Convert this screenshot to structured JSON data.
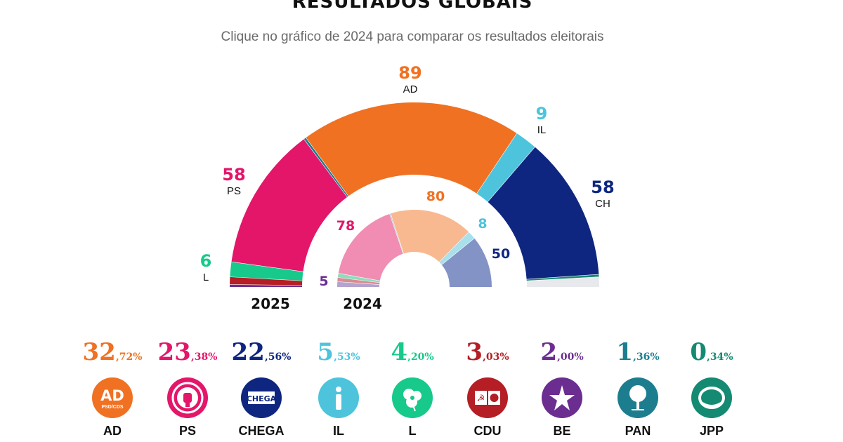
{
  "header": {
    "title": "RESULTADOS GLOBAIS",
    "subtitle": "Clique no gráfico de 2024 para comparar os resultados eleitorais"
  },
  "chart_data": {
    "type": "parliament-donut",
    "total_seats": 230,
    "charts": [
      {
        "year": "2025",
        "segments": [
          {
            "party": "BE",
            "seats": 1,
            "color": "#6b2d90",
            "label": ""
          },
          {
            "party": "CDU",
            "seats": 3,
            "color": "#b41e24",
            "label": ""
          },
          {
            "party": "L",
            "seats": 6,
            "color": "#17c98a",
            "label": "L",
            "value_label": "6"
          },
          {
            "party": "PS",
            "seats": 58,
            "color": "#e3166a",
            "label": "PS",
            "value_label": "58"
          },
          {
            "party": "PAN",
            "seats": 1,
            "color": "#1c7d8f",
            "label": ""
          },
          {
            "party": "AD",
            "seats": 89,
            "color": "#f07122",
            "label": "AD",
            "value_label": "89"
          },
          {
            "party": "IL",
            "seats": 9,
            "color": "#4dc4dc",
            "label": "IL",
            "value_label": "9"
          },
          {
            "party": "CH",
            "seats": 58,
            "color": "#0e2680",
            "label": "CH",
            "value_label": "58"
          },
          {
            "party": "JPP",
            "seats": 1,
            "color": "#148a72",
            "label": ""
          },
          {
            "party": "unassigned",
            "seats": 4,
            "color": "#e8e9ed",
            "label": ""
          }
        ]
      },
      {
        "year": "2024",
        "segments": [
          {
            "party": "BE",
            "seats": 5,
            "color": "#b5a3cf",
            "label": "",
            "value_label": "5"
          },
          {
            "party": "CDU",
            "seats": 4,
            "color": "#d98c8f",
            "label": ""
          },
          {
            "party": "L",
            "seats": 4,
            "color": "#8fdcbf",
            "label": ""
          },
          {
            "party": "PS",
            "seats": 78,
            "color": "#f18db2",
            "label": "",
            "value_label": "78"
          },
          {
            "party": "PAN",
            "seats": 1,
            "color": "#9fc2ca",
            "label": ""
          },
          {
            "party": "AD",
            "seats": 80,
            "color": "#f8b890",
            "label": "",
            "value_label": "80"
          },
          {
            "party": "IL",
            "seats": 8,
            "color": "#a8e0ec",
            "label": "",
            "value_label": "8"
          },
          {
            "party": "CH",
            "seats": 50,
            "color": "#8393c6",
            "label": "",
            "value_label": "50"
          }
        ]
      }
    ]
  },
  "results": [
    {
      "name": "AD",
      "int": "32",
      "dec": ",72%",
      "color": "#f07122",
      "logo": "ad-logo",
      "logo_text": "AD",
      "logo_sub": "PSD/CDS"
    },
    {
      "name": "PS",
      "int": "23",
      "dec": ",38%",
      "color": "#e3166a",
      "logo": "ps-fist-logo"
    },
    {
      "name": "CHEGA",
      "int": "22",
      "dec": ",56%",
      "color": "#0e2680",
      "logo": "chega-logo",
      "logo_text": "CHEGA"
    },
    {
      "name": "IL",
      "int": "5",
      "dec": ",53%",
      "color": "#4dc4dc",
      "logo": "il-logo"
    },
    {
      "name": "L",
      "int": "4",
      "dec": ",20%",
      "color": "#17c98a",
      "logo": "livre-poppy-logo"
    },
    {
      "name": "CDU",
      "int": "3",
      "dec": ",03%",
      "color": "#b41e24",
      "logo": "cdu-logo"
    },
    {
      "name": "BE",
      "int": "2",
      "dec": ",00%",
      "color": "#6b2d90",
      "logo": "be-star-logo"
    },
    {
      "name": "PAN",
      "int": "1",
      "dec": ",36%",
      "color": "#1c7d8f",
      "logo": "pan-tree-logo"
    },
    {
      "name": "JPP",
      "int": "0",
      "dec": ",34%",
      "color": "#148a72",
      "logo": "jpp-logo"
    }
  ]
}
